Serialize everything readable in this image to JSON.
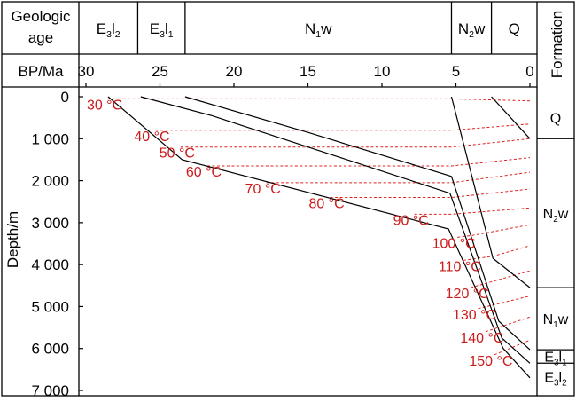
{
  "chart_data": {
    "type": "line",
    "header": {
      "age_title_line1": "Geologic",
      "age_title_line2": "age",
      "units": [
        {
          "key": "E3l2",
          "main": "E",
          "sub1": "3",
          "mid": "l",
          "sub2": "2",
          "from": 30,
          "to": 26.5
        },
        {
          "key": "E3l1",
          "main": "E",
          "sub1": "3",
          "mid": "l",
          "sub2": "1",
          "from": 26.5,
          "to": 23.3
        },
        {
          "key": "N1w",
          "main": "N",
          "sub1": "1",
          "mid": "w",
          "sub2": "",
          "from": 23.3,
          "to": 5.3
        },
        {
          "key": "N2w",
          "main": "N",
          "sub1": "2",
          "mid": "w",
          "sub2": "",
          "from": 5.3,
          "to": 2.6
        },
        {
          "key": "Q",
          "main": "Q",
          "sub1": "",
          "mid": "",
          "sub2": "",
          "from": 2.6,
          "to": 0
        }
      ]
    },
    "xlabel": "BP/Ma",
    "ylabel": "Depth/m",
    "formation_label": "Formation",
    "xlim": [
      30,
      0
    ],
    "ylim": [
      0,
      7000
    ],
    "xticks": [
      "30",
      "25",
      "20",
      "15",
      "10",
      "5",
      "0"
    ],
    "xtick_values": [
      30,
      25,
      20,
      15,
      10,
      5,
      0
    ],
    "yticks": [
      "0",
      "1 000",
      "2 000",
      "3 000",
      "4 000",
      "5 000",
      "6 000",
      "7 000"
    ],
    "ytick_values": [
      0,
      1000,
      2000,
      3000,
      4000,
      5000,
      6000,
      7000
    ],
    "burial_curves": [
      {
        "points": [
          [
            28.5,
            0
          ],
          [
            23.5,
            1500
          ],
          [
            5.5,
            3150
          ],
          [
            1.8,
            6000
          ],
          [
            0,
            6700
          ]
        ]
      },
      {
        "points": [
          [
            26.3,
            0
          ],
          [
            21.5,
            450
          ],
          [
            5.4,
            2300
          ],
          [
            1.9,
            5750
          ],
          [
            0,
            6350
          ]
        ]
      },
      {
        "points": [
          [
            23.3,
            0
          ],
          [
            15,
            850
          ],
          [
            5.3,
            1900
          ],
          [
            2.1,
            5350
          ],
          [
            0,
            6030
          ]
        ]
      },
      {
        "points": [
          [
            5.3,
            0
          ],
          [
            2.5,
            3850
          ],
          [
            0,
            4550
          ]
        ]
      },
      {
        "points": [
          [
            2.6,
            0
          ],
          [
            0,
            1000
          ]
        ]
      }
    ],
    "isotherms": [
      {
        "label": "30 °C",
        "temp": 30,
        "points": [
          [
            28.5,
            50
          ],
          [
            5.3,
            50
          ],
          [
            0,
            100
          ]
        ]
      },
      {
        "label": "40 °C",
        "temp": 40,
        "points": [
          [
            25.3,
            800
          ],
          [
            5.3,
            800
          ],
          [
            0,
            650
          ]
        ]
      },
      {
        "label": "50 °C",
        "temp": 50,
        "points": [
          [
            23.6,
            1200
          ],
          [
            5.3,
            1200
          ],
          [
            0,
            1000
          ]
        ]
      },
      {
        "label": "60 °C",
        "temp": 60,
        "points": [
          [
            21.8,
            1650
          ],
          [
            5.3,
            1650
          ],
          [
            0,
            1450
          ]
        ]
      },
      {
        "label": "70 °C",
        "temp": 70,
        "points": [
          [
            17.8,
            2050
          ],
          [
            5.3,
            2050
          ],
          [
            0,
            1800
          ]
        ]
      },
      {
        "label": "80 °C",
        "temp": 80,
        "points": [
          [
            13.5,
            2400
          ],
          [
            5.3,
            2400
          ],
          [
            0,
            2200
          ]
        ]
      },
      {
        "label": "90 °C",
        "temp": 90,
        "points": [
          [
            7.8,
            2800
          ],
          [
            5.3,
            2800
          ],
          [
            0,
            2650
          ]
        ]
      },
      {
        "label": "100 °C",
        "temp": 100,
        "points": [
          [
            4.9,
            3350
          ],
          [
            3.8,
            3300
          ],
          [
            0,
            3050
          ]
        ]
      },
      {
        "label": "110 °C",
        "temp": 110,
        "points": [
          [
            4.5,
            3900
          ],
          [
            2.5,
            3800
          ],
          [
            0,
            3550
          ]
        ]
      },
      {
        "label": "120 °C",
        "temp": 120,
        "points": [
          [
            4.0,
            4550
          ],
          [
            0,
            4150
          ]
        ]
      },
      {
        "label": "130 °C",
        "temp": 130,
        "points": [
          [
            3.5,
            5050
          ],
          [
            0,
            4750
          ]
        ]
      },
      {
        "label": "140 °C",
        "temp": 140,
        "points": [
          [
            3.0,
            5600
          ],
          [
            0,
            5250
          ]
        ]
      },
      {
        "label": "150 °C",
        "temp": 150,
        "points": [
          [
            2.4,
            6150
          ],
          [
            0,
            5800
          ]
        ]
      }
    ],
    "formations": [
      {
        "key": "Q",
        "main": "Q",
        "sub1": "",
        "mid": "",
        "sub2": "",
        "top": 0,
        "bottom": 1000
      },
      {
        "key": "N2w",
        "main": "N",
        "sub1": "2",
        "mid": "w",
        "sub2": "",
        "top": 1000,
        "bottom": 4550
      },
      {
        "key": "N1w",
        "main": "N",
        "sub1": "1",
        "mid": "w",
        "sub2": "",
        "top": 4550,
        "bottom": 6030
      },
      {
        "key": "E3l1",
        "main": "E",
        "sub1": "3",
        "mid": "l",
        "sub2": "1",
        "top": 6030,
        "bottom": 6350
      },
      {
        "key": "E3l2",
        "main": "E",
        "sub1": "3",
        "mid": "l",
        "sub2": "2",
        "top": 6350,
        "bottom": 7000
      }
    ],
    "colors": {
      "burial": "#000000",
      "isotherm": "#e0201a",
      "label": "#cc1a1a"
    }
  }
}
